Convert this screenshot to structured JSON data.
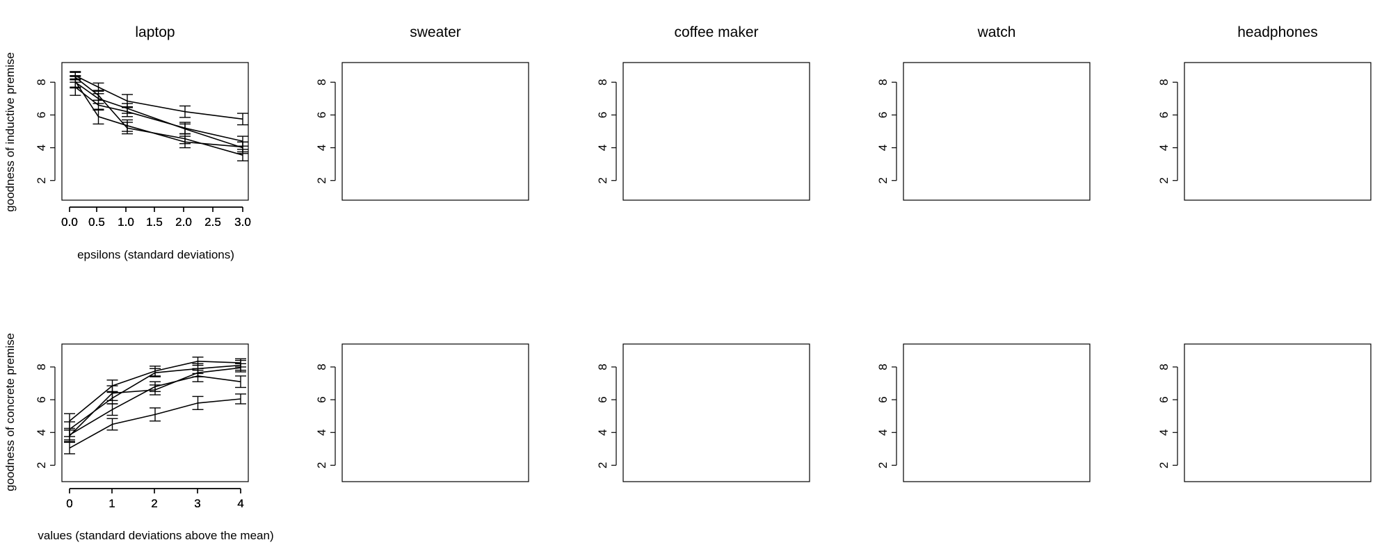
{
  "figure": {
    "row1_ylabel": "goodness of inductive premise",
    "row1_xlabel": "epsilons (standard deviations)",
    "row2_ylabel": "goodness of concrete premise",
    "row2_xlabel": "values (standard deviations above the mean)"
  },
  "chart_data": [
    {
      "type": "line",
      "title": "laptop",
      "xlabel": "epsilons (standard deviations)",
      "ylabel": "goodness of inductive premise",
      "x": [
        0.1,
        0.5,
        1,
        2,
        3
      ],
      "values": [
        8.3,
        7.2,
        5.2,
        4.55,
        3.55
      ],
      "err": [
        0.3,
        0.3,
        0.35,
        0.3,
        0.35
      ],
      "xlim": [
        0,
        3
      ],
      "ylim": [
        0.8,
        9.2
      ],
      "xticks": [
        "0.0",
        "0.5",
        "1.0",
        "1.5",
        "2.0",
        "2.5",
        "3.0"
      ],
      "yticks": [
        "2",
        "4",
        "6",
        "8"
      ]
    },
    {
      "type": "line",
      "title": "sweater",
      "xlabel": "",
      "ylabel": "",
      "x": [
        0.1,
        0.5,
        1,
        2,
        3
      ],
      "values": [
        8.0,
        7.0,
        6.4,
        5.15,
        4.0
      ],
      "err": [
        0.35,
        0.3,
        0.3,
        0.3,
        0.35
      ],
      "xlim": [
        0,
        3
      ],
      "ylim": [
        0.8,
        9.2
      ],
      "xticks": [
        "0.0",
        "0.5",
        "1.0",
        "1.5",
        "2.0",
        "2.5",
        "3.0"
      ],
      "yticks": [
        "2",
        "4",
        "6",
        "8"
      ]
    },
    {
      "type": "line",
      "title": "coffee maker",
      "xlabel": "",
      "ylabel": "",
      "x": [
        0.1,
        0.5,
        1,
        2,
        3
      ],
      "values": [
        7.7,
        6.6,
        6.2,
        5.2,
        4.4
      ],
      "err": [
        0.5,
        0.3,
        0.3,
        0.35,
        0.3
      ],
      "xlim": [
        0,
        3
      ],
      "ylim": [
        0.8,
        9.2
      ],
      "xticks": [
        "0.0",
        "0.5",
        "1.0",
        "1.5",
        "2.0",
        "2.5",
        "3.0"
      ],
      "yticks": [
        "2",
        "4",
        "6",
        "8"
      ]
    },
    {
      "type": "line",
      "title": "watch",
      "xlabel": "",
      "ylabel": "",
      "x": [
        0.1,
        0.5,
        1,
        2,
        3
      ],
      "values": [
        8.4,
        7.7,
        6.85,
        6.2,
        5.75
      ],
      "err": [
        0.25,
        0.25,
        0.4,
        0.35,
        0.35
      ],
      "xlim": [
        0,
        3
      ],
      "ylim": [
        0.8,
        9.2
      ],
      "xticks": [
        "0.0",
        "0.5",
        "1.0",
        "1.5",
        "2.0",
        "2.5",
        "3.0"
      ],
      "yticks": [
        "2",
        "4",
        "6",
        "8"
      ]
    },
    {
      "type": "line",
      "title": "headphones",
      "xlabel": "",
      "ylabel": "",
      "x": [
        0.1,
        0.5,
        1,
        2,
        3
      ],
      "values": [
        8.05,
        5.9,
        5.35,
        4.35,
        4.05
      ],
      "err": [
        0.35,
        0.45,
        0.35,
        0.35,
        0.3
      ],
      "xlim": [
        0,
        3
      ],
      "ylim": [
        0.8,
        9.2
      ],
      "xticks": [
        "0.0",
        "0.5",
        "1.0",
        "1.5",
        "2.0",
        "2.5",
        "3.0"
      ],
      "yticks": [
        "2",
        "4",
        "6",
        "8"
      ]
    },
    {
      "type": "line",
      "title": "",
      "xlabel": "values (standard deviations above the mean)",
      "ylabel": "goodness of concrete premise",
      "x": [
        0,
        1,
        2,
        3,
        4
      ],
      "values": [
        4.7,
        6.85,
        7.75,
        8.35,
        8.25
      ],
      "err": [
        0.45,
        0.35,
        0.3,
        0.25,
        0.25
      ],
      "xlim": [
        0,
        4
      ],
      "ylim": [
        1.0,
        9.4
      ],
      "xticks": [
        "0",
        "1",
        "2",
        "3",
        "4"
      ],
      "yticks": [
        "2",
        "4",
        "6",
        "8"
      ]
    },
    {
      "type": "line",
      "title": "",
      "xlabel": "",
      "ylabel": "",
      "x": [
        0,
        1,
        2,
        3,
        4
      ],
      "values": [
        3.8,
        6.4,
        6.6,
        7.65,
        7.95
      ],
      "err": [
        0.35,
        0.45,
        0.3,
        0.25,
        0.25
      ],
      "xlim": [
        0,
        4
      ],
      "ylim": [
        1.0,
        9.4
      ],
      "xticks": [
        "0",
        "1",
        "2",
        "3",
        "4"
      ],
      "yticks": [
        "2",
        "4",
        "6",
        "8"
      ]
    },
    {
      "type": "line",
      "title": "",
      "xlabel": "",
      "ylabel": "",
      "x": [
        0,
        1,
        2,
        3,
        4
      ],
      "values": [
        3.85,
        5.4,
        6.8,
        7.45,
        7.1
      ],
      "err": [
        0.3,
        0.35,
        0.3,
        0.35,
        0.35
      ],
      "xlim": [
        0,
        4
      ],
      "ylim": [
        1.0,
        9.4
      ],
      "xticks": [
        "0",
        "1",
        "2",
        "3",
        "4"
      ],
      "yticks": [
        "2",
        "4",
        "6",
        "8"
      ]
    },
    {
      "type": "line",
      "title": "",
      "xlabel": "",
      "ylabel": "",
      "x": [
        0,
        1,
        2,
        3,
        4
      ],
      "values": [
        3.05,
        4.5,
        5.1,
        5.8,
        6.05
      ],
      "err": [
        0.35,
        0.35,
        0.4,
        0.4,
        0.3
      ],
      "xlim": [
        0,
        4
      ],
      "ylim": [
        1.0,
        9.4
      ],
      "xticks": [
        "0",
        "1",
        "2",
        "3",
        "4"
      ],
      "yticks": [
        "2",
        "4",
        "6",
        "8"
      ]
    },
    {
      "type": "line",
      "title": "",
      "xlabel": "",
      "ylabel": "",
      "x": [
        0,
        1,
        2,
        3,
        4
      ],
      "values": [
        4.2,
        6.1,
        7.65,
        7.9,
        8.1
      ],
      "err": [
        0.45,
        0.35,
        0.25,
        0.3,
        0.3
      ],
      "xlim": [
        0,
        4
      ],
      "ylim": [
        1.0,
        9.4
      ],
      "xticks": [
        "0",
        "1",
        "2",
        "3",
        "4"
      ],
      "yticks": [
        "2",
        "4",
        "6",
        "8"
      ]
    }
  ]
}
